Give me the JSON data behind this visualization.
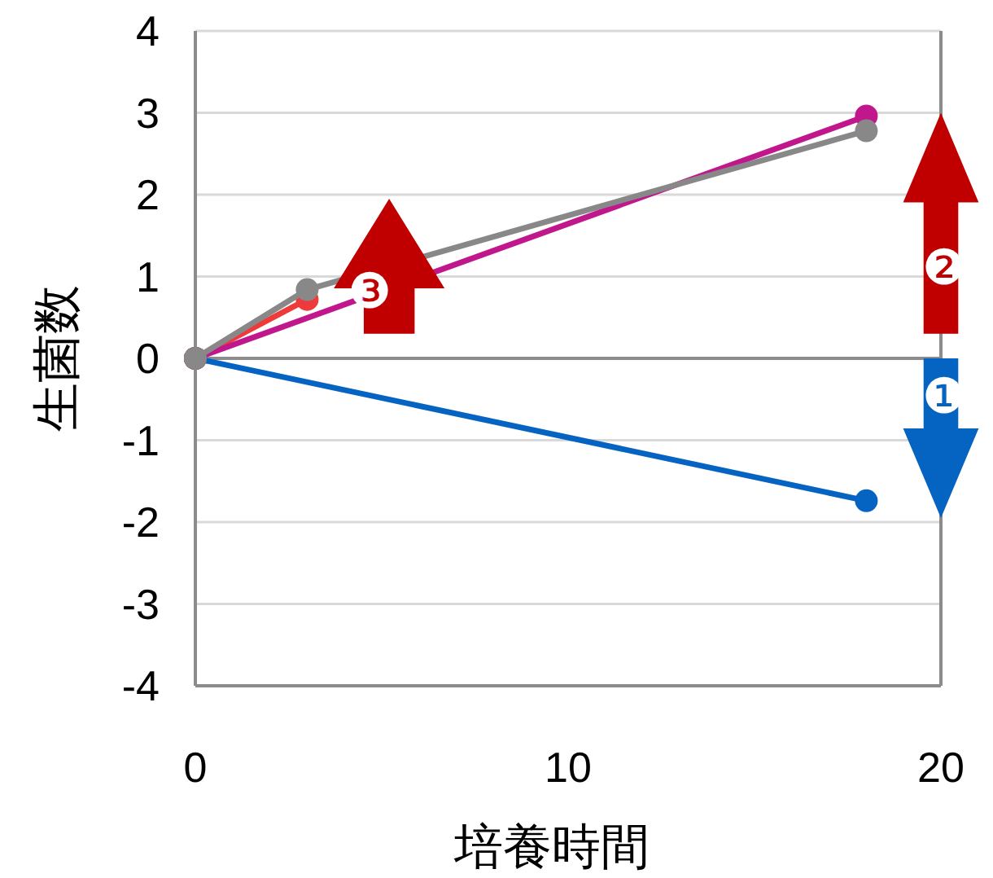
{
  "chart_data": {
    "type": "line",
    "xlabel": "培養時間",
    "ylabel": "生菌数",
    "xlim": [
      0,
      20
    ],
    "xticks": [
      0,
      10,
      20
    ],
    "ylim": [
      -4,
      4
    ],
    "yticks": [
      -4,
      -3,
      -2,
      -1,
      0,
      1,
      2,
      3,
      4
    ],
    "grid": "y",
    "marker": "circle",
    "line_style": "solid",
    "series": [
      {
        "color": "#0563c1",
        "x": [
          0,
          18
        ],
        "values": [
          0,
          -1.74
        ]
      },
      {
        "color": "#ee3a3a",
        "x": [
          0,
          3
        ],
        "values": [
          0,
          0.72
        ]
      },
      {
        "color": "#c0188c",
        "x": [
          0,
          18
        ],
        "values": [
          0,
          2.96
        ]
      },
      {
        "color": "#888888",
        "x": [
          0,
          3,
          18
        ],
        "values": [
          0,
          0.84,
          2.78
        ]
      }
    ],
    "annotations": [
      "❶",
      "❷",
      "❸"
    ]
  }
}
